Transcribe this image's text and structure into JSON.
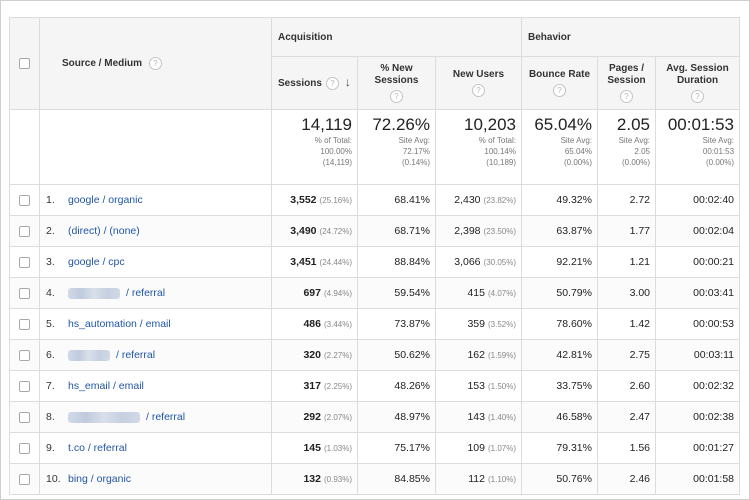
{
  "header": {
    "source_medium": "Source / Medium",
    "acquisition": "Acquisition",
    "behavior": "Behavior",
    "help": "?",
    "sort_arrow": "↓",
    "columns": {
      "sessions": "Sessions",
      "new_sessions": "% New Sessions",
      "new_users": "New Users",
      "bounce_rate": "Bounce Rate",
      "pages_session": "Pages / Session",
      "avg_duration": "Avg. Session Duration"
    }
  },
  "totals": {
    "sessions": {
      "big": "14,119",
      "l1": "% of Total:",
      "l2": "100.00%",
      "l3": "(14,119)"
    },
    "new_sessions": {
      "big": "72.26%",
      "l1": "Site Avg:",
      "l2": "72.17%",
      "l3": "(0.14%)"
    },
    "new_users": {
      "big": "10,203",
      "l1": "% of Total:",
      "l2": "100.14%",
      "l3": "(10,189)"
    },
    "bounce_rate": {
      "big": "65.04%",
      "l1": "Site Avg:",
      "l2": "65.04%",
      "l3": "(0.00%)"
    },
    "pages_session": {
      "big": "2.05",
      "l1": "Site Avg:",
      "l2": "2.05",
      "l3": "(0.00%)"
    },
    "avg_duration": {
      "big": "00:01:53",
      "l1": "Site Avg:",
      "l2": "00:01:53",
      "l3": "(0.00%)"
    }
  },
  "rows": [
    {
      "idx": "1.",
      "source": "google / organic",
      "sessions": "3,552",
      "sessions_pct": "(25.16%)",
      "new_sessions": "68.41%",
      "new_users": "2,430",
      "new_users_pct": "(23.82%)",
      "bounce": "49.32%",
      "pages": "2.72",
      "duration": "00:02:40"
    },
    {
      "idx": "2.",
      "source": "(direct) / (none)",
      "sessions": "3,490",
      "sessions_pct": "(24.72%)",
      "new_sessions": "68.71%",
      "new_users": "2,398",
      "new_users_pct": "(23.50%)",
      "bounce": "63.87%",
      "pages": "1.77",
      "duration": "00:02:04"
    },
    {
      "idx": "3.",
      "source": "google / cpc",
      "sessions": "3,451",
      "sessions_pct": "(24.44%)",
      "new_sessions": "88.84%",
      "new_users": "3,066",
      "new_users_pct": "(30.05%)",
      "bounce": "92.21%",
      "pages": "1.21",
      "duration": "00:00:21"
    },
    {
      "idx": "4.",
      "source": "/ referral",
      "sessions": "697",
      "sessions_pct": "(4.94%)",
      "new_sessions": "59.54%",
      "new_users": "415",
      "new_users_pct": "(4.07%)",
      "bounce": "50.79%",
      "pages": "3.00",
      "duration": "00:03:41"
    },
    {
      "idx": "5.",
      "source": "hs_automation / email",
      "sessions": "486",
      "sessions_pct": "(3.44%)",
      "new_sessions": "73.87%",
      "new_users": "359",
      "new_users_pct": "(3.52%)",
      "bounce": "78.60%",
      "pages": "1.42",
      "duration": "00:00:53"
    },
    {
      "idx": "6.",
      "source": "/ referral",
      "sessions": "320",
      "sessions_pct": "(2.27%)",
      "new_sessions": "50.62%",
      "new_users": "162",
      "new_users_pct": "(1.59%)",
      "bounce": "42.81%",
      "pages": "2.75",
      "duration": "00:03:11"
    },
    {
      "idx": "7.",
      "source": "hs_email / email",
      "sessions": "317",
      "sessions_pct": "(2.25%)",
      "new_sessions": "48.26%",
      "new_users": "153",
      "new_users_pct": "(1.50%)",
      "bounce": "33.75%",
      "pages": "2.60",
      "duration": "00:02:32"
    },
    {
      "idx": "8.",
      "source": "/ referral",
      "sessions": "292",
      "sessions_pct": "(2.07%)",
      "new_sessions": "48.97%",
      "new_users": "143",
      "new_users_pct": "(1.40%)",
      "bounce": "46.58%",
      "pages": "2.47",
      "duration": "00:02:38"
    },
    {
      "idx": "9.",
      "source": "t.co / referral",
      "sessions": "145",
      "sessions_pct": "(1.03%)",
      "new_sessions": "75.17%",
      "new_users": "109",
      "new_users_pct": "(1.07%)",
      "bounce": "79.31%",
      "pages": "1.56",
      "duration": "00:01:27"
    },
    {
      "idx": "10.",
      "source": "bing / organic",
      "sessions": "132",
      "sessions_pct": "(0.93%)",
      "new_sessions": "84.85%",
      "new_users": "112",
      "new_users_pct": "(1.10%)",
      "bounce": "50.76%",
      "pages": "2.46",
      "duration": "00:01:58"
    }
  ],
  "colors": {
    "link": "#1f56a8",
    "header_bg": "#f5f5f5",
    "border": "#dcdcdc"
  }
}
